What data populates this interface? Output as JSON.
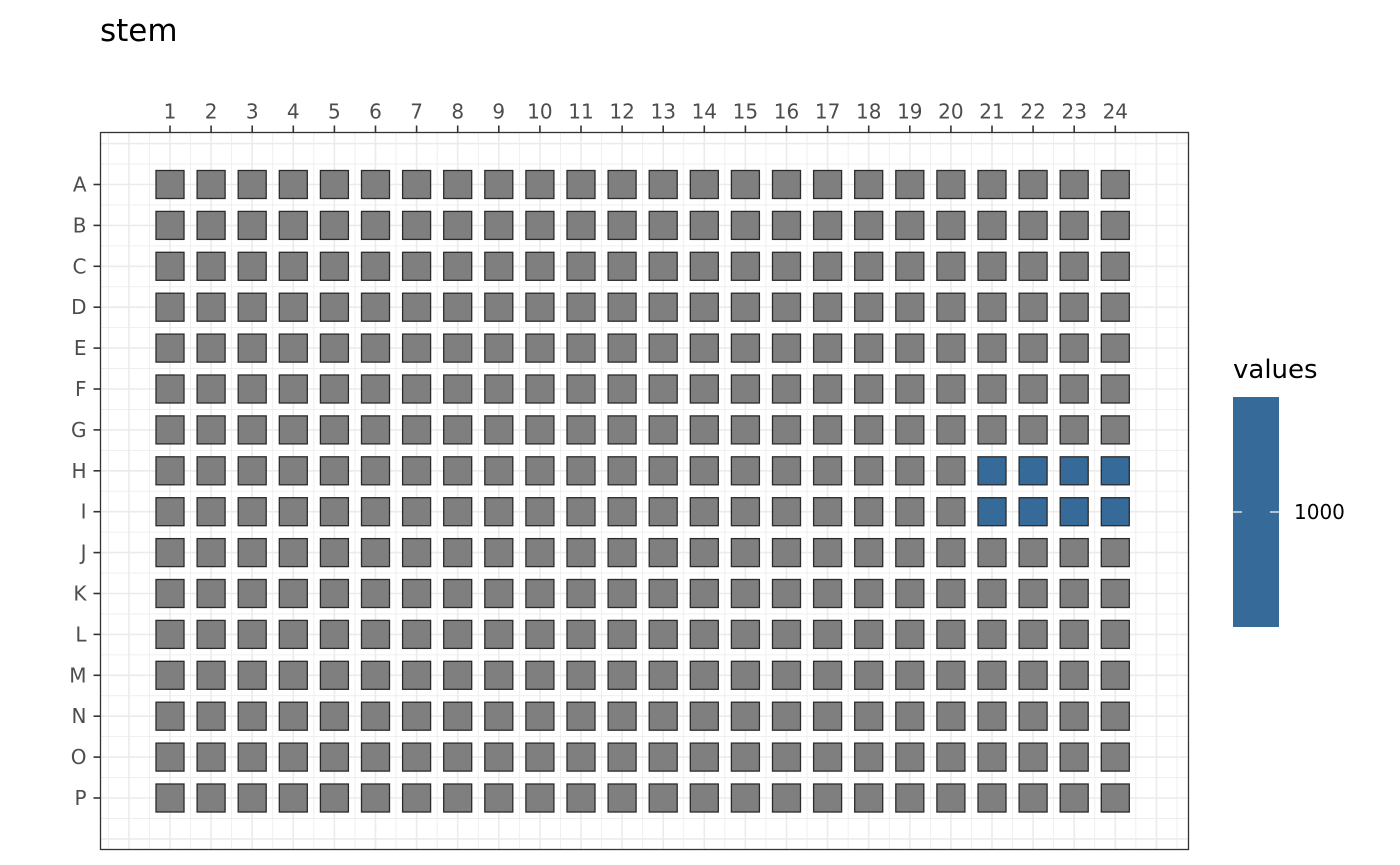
{
  "chart_data": {
    "type": "heatmap",
    "title": "stem",
    "xlabel": "",
    "ylabel": "",
    "x_categories": [
      "1",
      "2",
      "3",
      "4",
      "5",
      "6",
      "7",
      "8",
      "9",
      "10",
      "11",
      "12",
      "13",
      "14",
      "15",
      "16",
      "17",
      "18",
      "19",
      "20",
      "21",
      "22",
      "23",
      "24"
    ],
    "y_categories": [
      "A",
      "B",
      "C",
      "D",
      "E",
      "F",
      "G",
      "H",
      "I",
      "J",
      "K",
      "L",
      "M",
      "N",
      "O",
      "P"
    ],
    "x_axis_position": "top",
    "grid": true,
    "legend": {
      "title": "values",
      "position": "right",
      "breaks": [
        1000
      ]
    },
    "colors": {
      "na_fill": "#7f7f7f",
      "value_fill": "#356a99",
      "well_border": "#2b2b2b",
      "grid": "#ebebeb",
      "panel_border": "#333333",
      "tick": "#333333",
      "tick_label": "#4d4d4d"
    },
    "points": [
      {
        "row": "H",
        "col": "21",
        "value": 1000
      },
      {
        "row": "H",
        "col": "22",
        "value": 1000
      },
      {
        "row": "H",
        "col": "23",
        "value": 1000
      },
      {
        "row": "H",
        "col": "24",
        "value": 1000
      },
      {
        "row": "I",
        "col": "21",
        "value": 1000
      },
      {
        "row": "I",
        "col": "22",
        "value": 1000
      },
      {
        "row": "I",
        "col": "23",
        "value": 1000
      },
      {
        "row": "I",
        "col": "24",
        "value": 1000
      }
    ]
  }
}
